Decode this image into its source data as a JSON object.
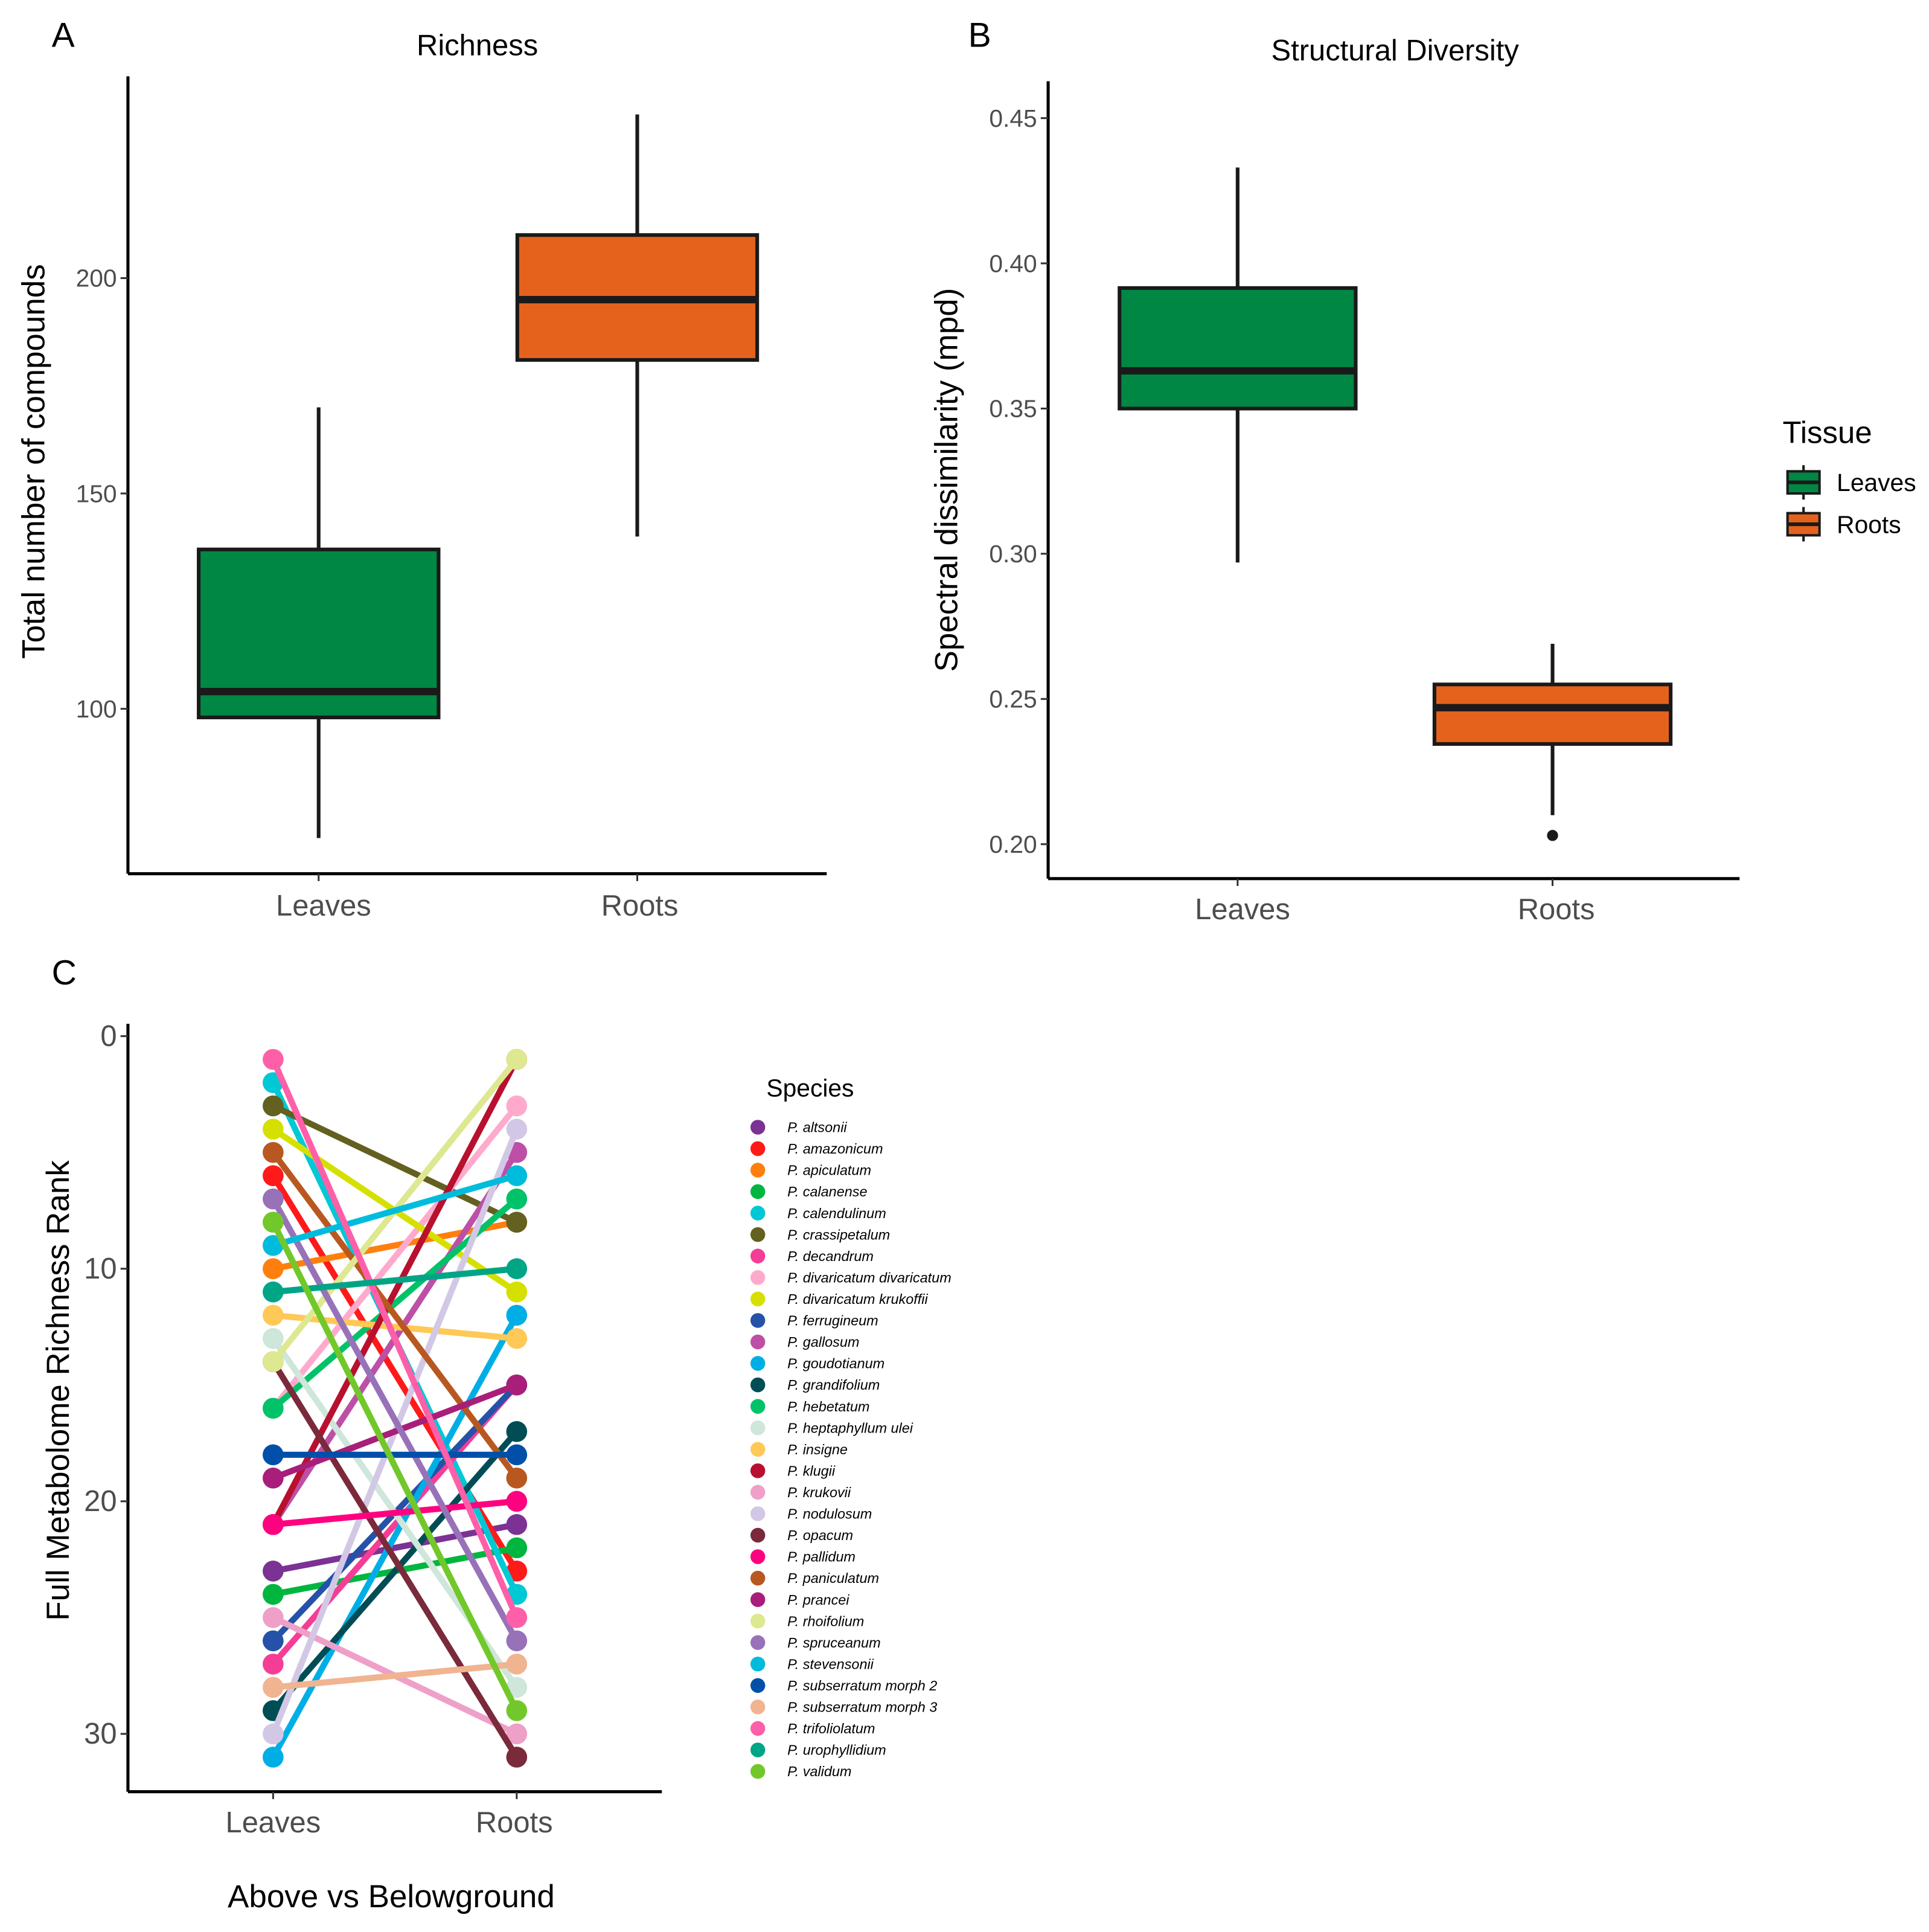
{
  "chart_data": [
    {
      "panel": "A",
      "type": "box",
      "title": "Richness",
      "xlabel": "",
      "ylabel": "Total number of compounds",
      "categories": [
        "Leaves",
        "Roots"
      ],
      "yticks": [
        100,
        150,
        200
      ],
      "ylim": [
        62,
        245
      ],
      "boxes": [
        {
          "name": "Leaves",
          "color": "#008744",
          "whisker_low": 70,
          "q1": 98,
          "median": 104,
          "q3": 137,
          "whisker_high": 170,
          "outliers": []
        },
        {
          "name": "Roots",
          "color": "#e5621d",
          "whisker_low": 140,
          "q1": 181,
          "median": 195,
          "q3": 210,
          "whisker_high": 238,
          "outliers": []
        }
      ]
    },
    {
      "panel": "B",
      "type": "box",
      "title": "Structural Diversity",
      "xlabel": "",
      "ylabel": "Spectral dissimilarity (mpd)",
      "categories": [
        "Leaves",
        "Roots"
      ],
      "yticks": [
        0.2,
        0.25,
        0.3,
        0.35,
        0.4,
        0.45
      ],
      "ylim": [
        0.188,
        0.462
      ],
      "boxes": [
        {
          "name": "Leaves",
          "color": "#008744",
          "whisker_low": 0.297,
          "q1": 0.35,
          "median": 0.363,
          "q3": 0.3915,
          "whisker_high": 0.433,
          "outliers": []
        },
        {
          "name": "Roots",
          "color": "#e5621d",
          "whisker_low": 0.21,
          "q1": 0.2345,
          "median": 0.247,
          "q3": 0.255,
          "whisker_high": 0.269,
          "outliers": [
            0.203
          ]
        }
      ],
      "legend": {
        "title": "Tissue",
        "position": "right",
        "entries": [
          {
            "label": "Leaves",
            "color": "#008744"
          },
          {
            "label": "Roots",
            "color": "#e5621d"
          }
        ]
      }
    },
    {
      "panel": "C",
      "type": "line",
      "title": "",
      "xlabel": "Above vs Belowground",
      "ylabel": "Full Metabolome Richness Rank",
      "categories": [
        "Leaves",
        "Roots"
      ],
      "yticks": [
        0,
        10,
        20,
        30
      ],
      "ylim": [
        0,
        32
      ],
      "y_reversed": true,
      "legend": {
        "title": "Species",
        "position": "right"
      },
      "series": [
        {
          "name": "P. altsonii",
          "color": "#7b3294",
          "values": [
            23,
            21
          ]
        },
        {
          "name": "P. amazonicum",
          "color": "#ff1a1a",
          "values": [
            6,
            23
          ]
        },
        {
          "name": "P. apiculatum",
          "color": "#ff7f0e",
          "values": [
            10,
            8
          ]
        },
        {
          "name": "P. calanense",
          "color": "#00b63f",
          "values": [
            24,
            22
          ]
        },
        {
          "name": "P. calendulinum",
          "color": "#00c8d4",
          "values": [
            2,
            24
          ]
        },
        {
          "name": "P. crassipetalum",
          "color": "#636020",
          "values": [
            3,
            8
          ]
        },
        {
          "name": "P. decandrum",
          "color": "#f53d96",
          "values": [
            27,
            15
          ]
        },
        {
          "name": "P. divaricatum divaricatum",
          "color": "#ffaacc",
          "values": [
            16,
            3
          ]
        },
        {
          "name": "P. divaricatum krukoffii",
          "color": "#d6e000",
          "values": [
            4,
            11
          ]
        },
        {
          "name": "P. ferrugineum",
          "color": "#2552a8",
          "values": [
            26,
            15
          ]
        },
        {
          "name": "P. gallosum",
          "color": "#bd50a6",
          "values": [
            21,
            5
          ]
        },
        {
          "name": "P. goudotianum",
          "color": "#00aee6",
          "values": [
            31,
            12
          ]
        },
        {
          "name": "P. grandifolium",
          "color": "#004d55",
          "values": [
            29,
            17
          ]
        },
        {
          "name": "P. hebetatum",
          "color": "#00c268",
          "values": [
            16,
            7
          ]
        },
        {
          "name": "P. heptaphyllum ulei",
          "color": "#cfe6da",
          "values": [
            13,
            28
          ]
        },
        {
          "name": "P. insigne",
          "color": "#ffc857",
          "values": [
            12,
            13
          ]
        },
        {
          "name": "P. klugii",
          "color": "#b8102e",
          "values": [
            21,
            1
          ]
        },
        {
          "name": "P. krukovii",
          "color": "#eea0c8",
          "values": [
            25,
            30
          ]
        },
        {
          "name": "P. nodulosum",
          "color": "#d2c8e6",
          "values": [
            30,
            4
          ]
        },
        {
          "name": "P. opacum",
          "color": "#7a2a3a",
          "values": [
            14,
            31
          ]
        },
        {
          "name": "P. pallidum",
          "color": "#ff0080",
          "values": [
            21,
            20
          ]
        },
        {
          "name": "P. paniculatum",
          "color": "#b85820",
          "values": [
            5,
            19
          ]
        },
        {
          "name": "P. prancei",
          "color": "#a81e7a",
          "values": [
            19,
            15
          ]
        },
        {
          "name": "P. rhoifolium",
          "color": "#dde890",
          "values": [
            14,
            1
          ]
        },
        {
          "name": "P. spruceanum",
          "color": "#9872b8",
          "values": [
            7,
            26
          ]
        },
        {
          "name": "P. stevensonii",
          "color": "#00bcdc",
          "values": [
            9,
            6
          ]
        },
        {
          "name": "P. subserratum morph 2",
          "color": "#0050aa",
          "values": [
            18,
            18
          ]
        },
        {
          "name": "P. subserratum morph 3",
          "color": "#f0b490",
          "values": [
            28,
            27
          ]
        },
        {
          "name": "P. trifoliolatum",
          "color": "#ff5fa8",
          "values": [
            1,
            25
          ]
        },
        {
          "name": "P. urophyllidium",
          "color": "#00a586",
          "values": [
            11,
            10
          ]
        },
        {
          "name": "P. validum",
          "color": "#72c82a",
          "values": [
            8,
            29
          ]
        }
      ]
    }
  ],
  "panel_labels": [
    "A",
    "B",
    "C"
  ]
}
